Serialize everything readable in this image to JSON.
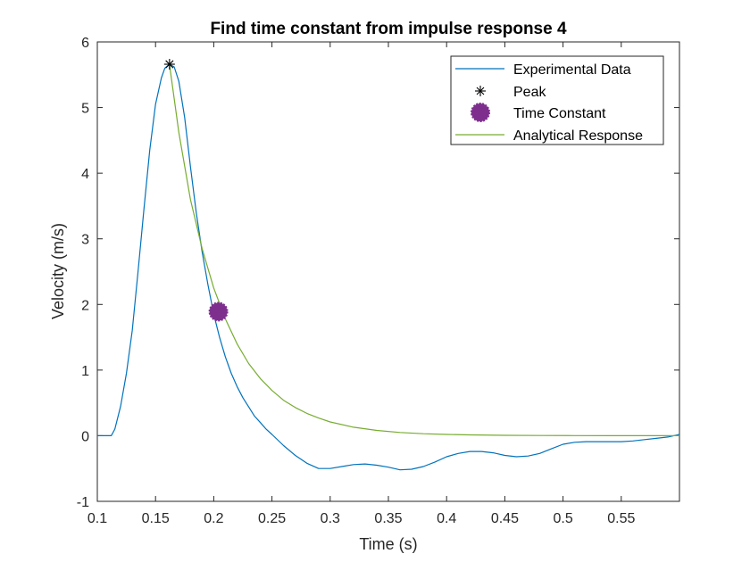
{
  "chart_data": {
    "type": "line",
    "title": "Find time constant from impulse response 4",
    "xlabel": "Time (s)",
    "ylabel": "Velocity (m/s)",
    "xlim": [
      0.1,
      0.6
    ],
    "ylim": [
      -1,
      6
    ],
    "x_ticks": [
      0.1,
      0.15,
      0.2,
      0.25,
      0.3,
      0.35,
      0.4,
      0.45,
      0.5,
      0.55
    ],
    "x_tick_labels": [
      "0.1",
      "0.15",
      "0.2",
      "0.25",
      "0.3",
      "0.35",
      "0.4",
      "0.45",
      "0.5",
      "0.55"
    ],
    "y_ticks": [
      -1,
      0,
      1,
      2,
      3,
      4,
      5,
      6
    ],
    "y_tick_labels": [
      "-1",
      "0",
      "1",
      "2",
      "3",
      "4",
      "5",
      "6"
    ],
    "grid": false,
    "legend_position": "top-right",
    "series": [
      {
        "name": "Experimental Data",
        "kind": "line",
        "color": "#0072BD",
        "x": [
          0.1,
          0.112,
          0.115,
          0.12,
          0.125,
          0.13,
          0.135,
          0.14,
          0.145,
          0.15,
          0.155,
          0.158,
          0.162,
          0.166,
          0.17,
          0.175,
          0.18,
          0.185,
          0.19,
          0.195,
          0.2,
          0.205,
          0.21,
          0.215,
          0.22,
          0.225,
          0.23,
          0.235,
          0.24,
          0.245,
          0.25,
          0.26,
          0.27,
          0.28,
          0.29,
          0.3,
          0.31,
          0.32,
          0.33,
          0.34,
          0.35,
          0.36,
          0.37,
          0.38,
          0.39,
          0.4,
          0.41,
          0.42,
          0.43,
          0.44,
          0.45,
          0.46,
          0.47,
          0.48,
          0.49,
          0.5,
          0.51,
          0.52,
          0.53,
          0.54,
          0.55,
          0.56,
          0.57,
          0.58,
          0.59,
          0.6
        ],
        "y": [
          0.0,
          0.0,
          0.1,
          0.45,
          0.95,
          1.6,
          2.5,
          3.45,
          4.35,
          5.05,
          5.45,
          5.6,
          5.66,
          5.62,
          5.4,
          4.85,
          4.1,
          3.4,
          2.8,
          2.3,
          1.85,
          1.5,
          1.2,
          0.95,
          0.75,
          0.58,
          0.44,
          0.3,
          0.2,
          0.1,
          0.02,
          -0.15,
          -0.3,
          -0.42,
          -0.5,
          -0.5,
          -0.47,
          -0.44,
          -0.43,
          -0.45,
          -0.48,
          -0.52,
          -0.51,
          -0.47,
          -0.4,
          -0.32,
          -0.27,
          -0.24,
          -0.24,
          -0.26,
          -0.3,
          -0.32,
          -0.31,
          -0.27,
          -0.2,
          -0.13,
          -0.1,
          -0.09,
          -0.09,
          -0.09,
          -0.09,
          -0.08,
          -0.06,
          -0.04,
          -0.02,
          0.02
        ]
      },
      {
        "name": "Peak",
        "kind": "marker-asterisk",
        "color": "#000000",
        "x": [
          0.162
        ],
        "y": [
          5.66
        ]
      },
      {
        "name": "Time Constant",
        "kind": "marker-circle",
        "color": "#7E2F8E",
        "x": [
          0.204
        ],
        "y": [
          1.89
        ]
      },
      {
        "name": "Analytical Response",
        "kind": "line",
        "color": "#77AC30",
        "x": [
          0.162,
          0.17,
          0.18,
          0.19,
          0.2,
          0.21,
          0.22,
          0.23,
          0.24,
          0.25,
          0.26,
          0.27,
          0.28,
          0.29,
          0.3,
          0.32,
          0.34,
          0.36,
          0.38,
          0.4,
          0.42,
          0.45,
          0.48,
          0.51,
          0.54,
          0.57,
          0.6
        ],
        "y": [
          5.66,
          4.62,
          3.6,
          2.85,
          2.25,
          1.78,
          1.4,
          1.1,
          0.87,
          0.69,
          0.54,
          0.43,
          0.34,
          0.27,
          0.21,
          0.13,
          0.08,
          0.05,
          0.03,
          0.02,
          0.012,
          0.006,
          0.003,
          0.002,
          0.001,
          0.0,
          0.0
        ]
      }
    ]
  }
}
